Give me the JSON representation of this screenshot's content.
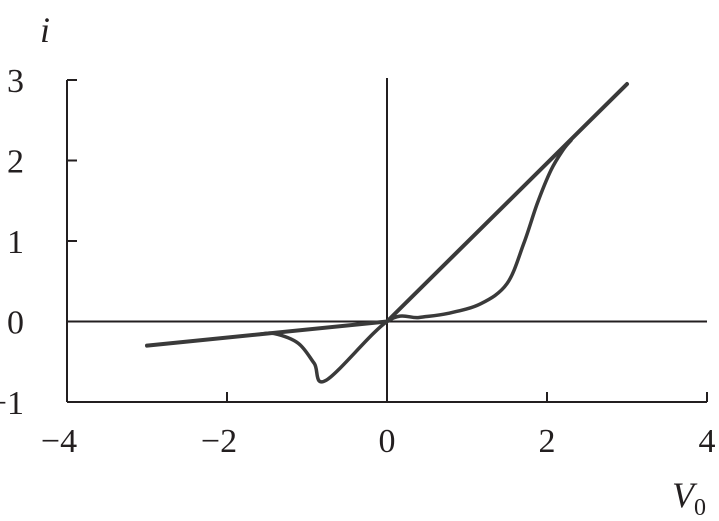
{
  "chart_data": {
    "type": "line",
    "title": "",
    "xlabel": "V",
    "xlabel_subscript": "0",
    "ylabel": "i",
    "xlim": [
      -4,
      4
    ],
    "ylim": [
      -1,
      3
    ],
    "x_ticks": [
      "−4",
      "−2",
      "0",
      "2",
      "4"
    ],
    "x_tick_values": [
      -4,
      -2,
      0,
      2,
      4
    ],
    "y_ticks": [
      "−1",
      "0",
      "1",
      "2",
      "3"
    ],
    "y_tick_values": [
      -1,
      0,
      1,
      2,
      3
    ],
    "grid": false,
    "line_color": "#3a3a3a",
    "series": [
      {
        "x": [
          -3,
          0,
          3
        ],
        "y": [
          -0.3,
          0,
          2.95
        ]
      },
      {
        "x": [
          -1.6,
          -1.41,
          -1.11,
          -0.91,
          -0.76,
          0,
          0.4,
          0.76,
          1.17,
          1.5,
          1.71,
          1.88,
          2.05,
          2.2,
          2.3
        ],
        "y": [
          -0.16,
          -0.15,
          -0.27,
          -0.52,
          -0.73,
          0,
          0.05,
          0.1,
          0.22,
          0.47,
          0.97,
          1.47,
          1.88,
          2.13,
          2.25
        ]
      }
    ]
  }
}
